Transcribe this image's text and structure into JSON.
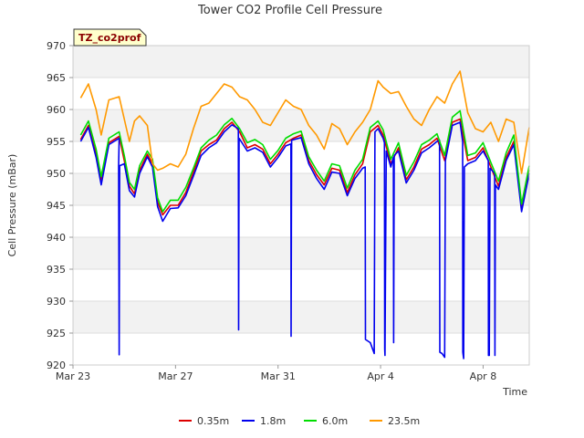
{
  "chart_data": {
    "type": "line",
    "title": "Tower CO2 Profile Cell Pressure",
    "badge": "TZ_co2prof",
    "xlabel": "Time",
    "ylabel": "Cell Pressure (mBar)",
    "ylim": [
      920,
      970
    ],
    "yticks": [
      920,
      925,
      930,
      935,
      940,
      945,
      950,
      955,
      960,
      965,
      970
    ],
    "xlim": [
      0,
      17.8
    ],
    "xticks": [
      {
        "label": "Mar 23",
        "value": 0
      },
      {
        "label": "Mar 27",
        "value": 4
      },
      {
        "label": "Mar 31",
        "value": 8
      },
      {
        "label": "Apr 4",
        "value": 12
      },
      {
        "label": "Apr 8",
        "value": 16
      }
    ],
    "grid": true,
    "legend_position": "bottom",
    "series": [
      {
        "name": "0.35m",
        "color": "#dd0000",
        "points": [
          [
            0.3,
            955.3
          ],
          [
            0.6,
            957.5
          ],
          [
            0.9,
            953.0
          ],
          [
            1.1,
            949.0
          ],
          [
            1.4,
            954.8
          ],
          [
            1.8,
            955.8
          ],
          [
            2.0,
            952.0
          ],
          [
            2.2,
            948.0
          ],
          [
            2.4,
            946.8
          ],
          [
            2.6,
            950.5
          ],
          [
            2.9,
            953.0
          ],
          [
            3.1,
            951.5
          ],
          [
            3.3,
            945.5
          ],
          [
            3.5,
            943.5
          ],
          [
            3.8,
            945.0
          ],
          [
            4.1,
            945.0
          ],
          [
            4.4,
            947.0
          ],
          [
            4.7,
            950.2
          ],
          [
            5.0,
            953.5
          ],
          [
            5.3,
            954.5
          ],
          [
            5.6,
            955.2
          ],
          [
            5.9,
            957.0
          ],
          [
            6.2,
            958.0
          ],
          [
            6.5,
            956.5
          ],
          [
            6.8,
            954.0
          ],
          [
            7.1,
            954.5
          ],
          [
            7.4,
            953.8
          ],
          [
            7.7,
            951.5
          ],
          [
            8.0,
            953.0
          ],
          [
            8.3,
            954.8
          ],
          [
            8.6,
            955.5
          ],
          [
            8.9,
            956.0
          ],
          [
            9.2,
            952.0
          ],
          [
            9.5,
            949.8
          ],
          [
            9.8,
            948.2
          ],
          [
            10.1,
            950.8
          ],
          [
            10.4,
            950.5
          ],
          [
            10.7,
            947.0
          ],
          [
            11.0,
            949.8
          ],
          [
            11.3,
            951.5
          ],
          [
            11.6,
            956.5
          ],
          [
            11.9,
            957.5
          ],
          [
            12.1,
            956.0
          ],
          [
            12.4,
            951.5
          ],
          [
            12.7,
            954.0
          ],
          [
            13.0,
            949.0
          ],
          [
            13.3,
            951.0
          ],
          [
            13.6,
            953.8
          ],
          [
            13.9,
            954.5
          ],
          [
            14.2,
            955.5
          ],
          [
            14.5,
            952.0
          ],
          [
            14.8,
            958.0
          ],
          [
            15.1,
            958.5
          ],
          [
            15.4,
            952.0
          ],
          [
            15.7,
            952.5
          ],
          [
            16.0,
            954.0
          ],
          [
            16.3,
            951.0
          ],
          [
            16.6,
            948.0
          ],
          [
            16.9,
            952.5
          ],
          [
            17.2,
            955.0
          ],
          [
            17.5,
            944.5
          ],
          [
            17.8,
            950.5
          ]
        ]
      },
      {
        "name": "1.8m",
        "color": "#0000ee",
        "points": [
          [
            0.3,
            955.0
          ],
          [
            0.6,
            957.2
          ],
          [
            0.9,
            952.5
          ],
          [
            1.1,
            948.2
          ],
          [
            1.4,
            954.5
          ],
          [
            1.8,
            955.5
          ],
          [
            1.78,
            951.2
          ],
          [
            1.8,
            921.6
          ],
          [
            1.82,
            951.2
          ],
          [
            2.0,
            951.5
          ],
          [
            2.2,
            947.3
          ],
          [
            2.4,
            946.3
          ],
          [
            2.6,
            950.0
          ],
          [
            2.9,
            952.6
          ],
          [
            3.1,
            951.0
          ],
          [
            3.3,
            944.8
          ],
          [
            3.5,
            942.5
          ],
          [
            3.8,
            944.5
          ],
          [
            4.1,
            944.6
          ],
          [
            4.4,
            946.5
          ],
          [
            4.7,
            949.6
          ],
          [
            5.0,
            952.8
          ],
          [
            5.3,
            954.0
          ],
          [
            5.6,
            954.8
          ],
          [
            5.9,
            956.5
          ],
          [
            6.2,
            957.6
          ],
          [
            6.45,
            957.0
          ],
          [
            6.46,
            925.5
          ],
          [
            6.48,
            955.5
          ],
          [
            6.8,
            953.5
          ],
          [
            7.1,
            954.0
          ],
          [
            7.4,
            953.3
          ],
          [
            7.7,
            951.0
          ],
          [
            8.0,
            952.5
          ],
          [
            8.3,
            954.3
          ],
          [
            8.5,
            954.6
          ],
          [
            8.51,
            924.5
          ],
          [
            8.53,
            955.2
          ],
          [
            8.9,
            955.6
          ],
          [
            9.2,
            951.5
          ],
          [
            9.5,
            949.2
          ],
          [
            9.8,
            947.5
          ],
          [
            10.1,
            950.2
          ],
          [
            10.4,
            950.0
          ],
          [
            10.7,
            946.5
          ],
          [
            11.0,
            949.2
          ],
          [
            11.3,
            950.8
          ],
          [
            11.4,
            951.0
          ],
          [
            11.41,
            924.0
          ],
          [
            11.6,
            923.5
          ],
          [
            11.75,
            921.8
          ],
          [
            11.78,
            956.5
          ],
          [
            11.9,
            957.0
          ],
          [
            12.1,
            955.5
          ],
          [
            12.15,
            954.8
          ],
          [
            12.16,
            922.5
          ],
          [
            12.17,
            921.5
          ],
          [
            12.22,
            953.5
          ],
          [
            12.4,
            951.0
          ],
          [
            12.5,
            952.5
          ],
          [
            12.51,
            923.5
          ],
          [
            12.53,
            952.8
          ],
          [
            12.7,
            953.5
          ],
          [
            13.0,
            948.5
          ],
          [
            13.3,
            950.5
          ],
          [
            13.6,
            953.2
          ],
          [
            13.9,
            954.0
          ],
          [
            14.2,
            955.0
          ],
          [
            14.3,
            955.2
          ],
          [
            14.31,
            922.0
          ],
          [
            14.4,
            921.8
          ],
          [
            14.5,
            921.2
          ],
          [
            14.53,
            952.0
          ],
          [
            14.8,
            957.5
          ],
          [
            15.1,
            958.0
          ],
          [
            15.2,
            955.0
          ],
          [
            15.21,
            922.0
          ],
          [
            15.24,
            921.0
          ],
          [
            15.27,
            951.0
          ],
          [
            15.4,
            951.5
          ],
          [
            15.7,
            952.0
          ],
          [
            16.0,
            953.5
          ],
          [
            16.2,
            952.0
          ],
          [
            16.21,
            921.5
          ],
          [
            16.24,
            921.5
          ],
          [
            16.27,
            950.8
          ],
          [
            16.45,
            950.0
          ],
          [
            16.46,
            921.5
          ],
          [
            16.48,
            948.2
          ],
          [
            16.6,
            947.5
          ],
          [
            16.9,
            952.0
          ],
          [
            17.2,
            954.5
          ],
          [
            17.5,
            944.0
          ],
          [
            17.8,
            950.0
          ]
        ]
      },
      {
        "name": "6.0m",
        "color": "#00dd00",
        "points": [
          [
            0.3,
            956.0
          ],
          [
            0.6,
            958.2
          ],
          [
            0.9,
            953.8
          ],
          [
            1.1,
            949.5
          ],
          [
            1.4,
            955.5
          ],
          [
            1.8,
            956.5
          ],
          [
            2.0,
            952.8
          ],
          [
            2.2,
            948.6
          ],
          [
            2.4,
            947.5
          ],
          [
            2.6,
            951.2
          ],
          [
            2.9,
            953.5
          ],
          [
            3.1,
            952.2
          ],
          [
            3.3,
            946.2
          ],
          [
            3.5,
            944.0
          ],
          [
            3.8,
            945.8
          ],
          [
            4.1,
            945.8
          ],
          [
            4.4,
            947.8
          ],
          [
            4.7,
            950.8
          ],
          [
            5.0,
            954.0
          ],
          [
            5.3,
            955.2
          ],
          [
            5.6,
            956.0
          ],
          [
            5.9,
            957.6
          ],
          [
            6.2,
            958.6
          ],
          [
            6.5,
            957.0
          ],
          [
            6.8,
            954.8
          ],
          [
            7.1,
            955.3
          ],
          [
            7.4,
            954.5
          ],
          [
            7.7,
            952.2
          ],
          [
            8.0,
            953.6
          ],
          [
            8.3,
            955.5
          ],
          [
            8.6,
            956.2
          ],
          [
            8.9,
            956.6
          ],
          [
            9.2,
            952.6
          ],
          [
            9.5,
            950.5
          ],
          [
            9.8,
            948.8
          ],
          [
            10.1,
            951.5
          ],
          [
            10.4,
            951.2
          ],
          [
            10.7,
            947.7
          ],
          [
            11.0,
            950.5
          ],
          [
            11.3,
            952.2
          ],
          [
            11.6,
            957.2
          ],
          [
            11.9,
            958.2
          ],
          [
            12.1,
            956.8
          ],
          [
            12.4,
            952.2
          ],
          [
            12.7,
            954.8
          ],
          [
            13.0,
            949.7
          ],
          [
            13.3,
            951.8
          ],
          [
            13.6,
            954.5
          ],
          [
            13.9,
            955.2
          ],
          [
            14.2,
            956.2
          ],
          [
            14.5,
            952.8
          ],
          [
            14.8,
            958.8
          ],
          [
            15.1,
            959.8
          ],
          [
            15.4,
            952.8
          ],
          [
            15.7,
            953.2
          ],
          [
            16.0,
            954.8
          ],
          [
            16.3,
            951.7
          ],
          [
            16.6,
            948.8
          ],
          [
            16.9,
            953.2
          ],
          [
            17.2,
            956.0
          ],
          [
            17.5,
            945.2
          ],
          [
            17.8,
            951.2
          ]
        ]
      },
      {
        "name": "23.5m",
        "color": "#ff9900",
        "points": [
          [
            0.3,
            961.8
          ],
          [
            0.6,
            964.0
          ],
          [
            0.9,
            960.0
          ],
          [
            1.1,
            956.0
          ],
          [
            1.4,
            961.5
          ],
          [
            1.8,
            962.0
          ],
          [
            2.0,
            958.5
          ],
          [
            2.2,
            955.0
          ],
          [
            2.4,
            958.2
          ],
          [
            2.6,
            959.0
          ],
          [
            2.9,
            957.5
          ],
          [
            3.1,
            951.5
          ],
          [
            3.3,
            950.5
          ],
          [
            3.5,
            950.8
          ],
          [
            3.8,
            951.5
          ],
          [
            4.1,
            951.0
          ],
          [
            4.4,
            953.0
          ],
          [
            4.7,
            957.0
          ],
          [
            5.0,
            960.5
          ],
          [
            5.3,
            961.0
          ],
          [
            5.6,
            962.5
          ],
          [
            5.9,
            964.0
          ],
          [
            6.2,
            963.5
          ],
          [
            6.5,
            962.0
          ],
          [
            6.8,
            961.5
          ],
          [
            7.1,
            960.0
          ],
          [
            7.4,
            958.0
          ],
          [
            7.7,
            957.5
          ],
          [
            8.0,
            959.5
          ],
          [
            8.3,
            961.5
          ],
          [
            8.6,
            960.5
          ],
          [
            8.9,
            960.0
          ],
          [
            9.2,
            957.5
          ],
          [
            9.5,
            956.0
          ],
          [
            9.8,
            953.8
          ],
          [
            10.1,
            957.8
          ],
          [
            10.4,
            957.0
          ],
          [
            10.7,
            954.5
          ],
          [
            11.0,
            956.5
          ],
          [
            11.3,
            958.0
          ],
          [
            11.6,
            960.0
          ],
          [
            11.9,
            964.5
          ],
          [
            12.1,
            963.5
          ],
          [
            12.4,
            962.5
          ],
          [
            12.7,
            962.8
          ],
          [
            13.0,
            960.5
          ],
          [
            13.3,
            958.5
          ],
          [
            13.6,
            957.5
          ],
          [
            13.9,
            960.0
          ],
          [
            14.2,
            962.0
          ],
          [
            14.5,
            961.0
          ],
          [
            14.8,
            964.0
          ],
          [
            15.1,
            966.0
          ],
          [
            15.4,
            959.5
          ],
          [
            15.7,
            957.0
          ],
          [
            16.0,
            956.5
          ],
          [
            16.3,
            958.0
          ],
          [
            16.6,
            955.0
          ],
          [
            16.9,
            958.5
          ],
          [
            17.2,
            958.0
          ],
          [
            17.5,
            950.0
          ],
          [
            17.8,
            957.2
          ]
        ]
      }
    ]
  }
}
